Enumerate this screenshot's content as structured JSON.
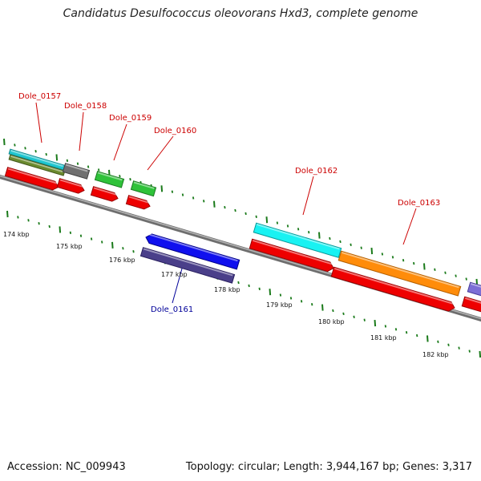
{
  "title": "Candidatus Desulfococcus oleovorans Hxd3, complete genome",
  "footer": {
    "accession": "Accession: NC_009943",
    "topology": "Topology: circular; Length: 3,944,167 bp; Genes: 3,317"
  },
  "scale": {
    "unit": "kbp",
    "labels": [
      "174 kbp",
      "175 kbp",
      "176 kbp",
      "177 kbp",
      "178 kbp",
      "179 kbp",
      "180 kbp",
      "181 kbp",
      "182 kbp"
    ]
  },
  "colors": {
    "label_forward": "#cc0000",
    "label_reverse": "#000099",
    "backbone": "#7a7a7a",
    "tick": "#1a7a1a",
    "cds": "#ee0000"
  },
  "genes": [
    {
      "id": "Dole_0157",
      "strand": "forward"
    },
    {
      "id": "Dole_0158",
      "strand": "forward"
    },
    {
      "id": "Dole_0159",
      "strand": "forward"
    },
    {
      "id": "Dole_0160",
      "strand": "forward"
    },
    {
      "id": "Dole_0161",
      "strand": "reverse"
    },
    {
      "id": "Dole_0162",
      "strand": "forward"
    },
    {
      "id": "Dole_0163",
      "strand": "forward"
    }
  ]
}
